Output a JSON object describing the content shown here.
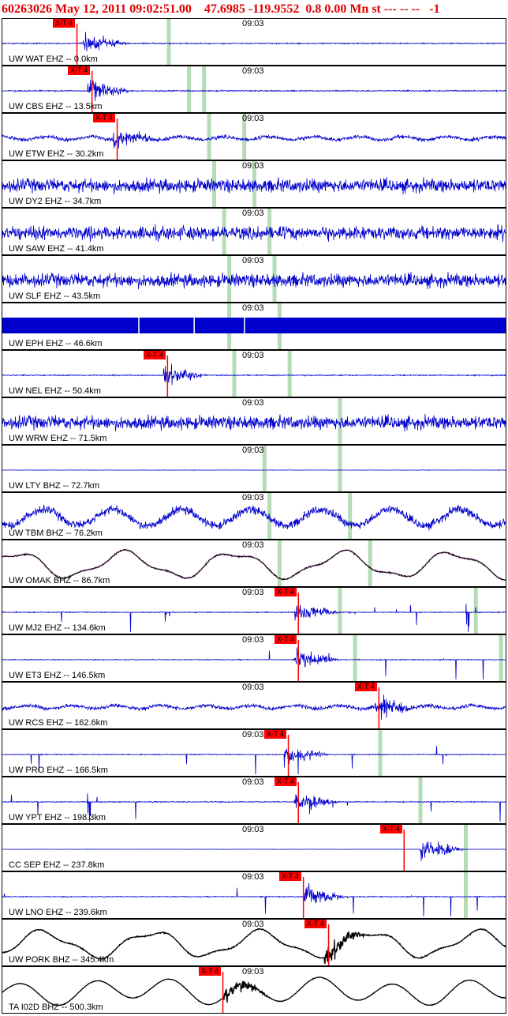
{
  "header": {
    "event_id": "60263026",
    "datetime": "May 12, 2011 09:02:51.00",
    "latitude": "47.6985",
    "longitude": "-119.9552",
    "magnitude": "0.8",
    "depth": "0.00",
    "mag_type": "Mn",
    "status": "st --- -- --",
    "flag": "-1"
  },
  "time_tick_label": "09:03",
  "pick_label": "X-T 4",
  "colors": {
    "blue_trace": "#0000cc",
    "dark_trace": "#2a0a2a",
    "black_trace": "#000000",
    "pick": "#ff0000",
    "phase_marker": "#b6dcb6",
    "header": "#e00000"
  },
  "traces": [
    {
      "label": "UW WAT EHZ -- 0.0km",
      "style": "quiet",
      "color": "blue_trace",
      "pick": true,
      "pick_x": 0.1,
      "burst_x": 0.16,
      "markers": [
        0.33
      ]
    },
    {
      "label": "UW CBS EHZ -- 13.5km",
      "style": "quiet",
      "color": "blue_trace",
      "pick": true,
      "pick_x": 0.13,
      "burst_x": 0.17,
      "markers": [
        0.37,
        0.4
      ]
    },
    {
      "label": "UW ETW EHZ -- 30.2km",
      "style": "moderate",
      "color": "blue_trace",
      "pick": true,
      "pick_x": 0.18,
      "burst_x": 0.22,
      "markers": [
        0.41,
        0.48
      ]
    },
    {
      "label": "UW DY2 EHZ -- 34.7km",
      "style": "noisy",
      "color": "blue_trace",
      "pick": false,
      "markers": [
        0.42,
        0.5
      ]
    },
    {
      "label": "UW SAW EHZ -- 41.4km",
      "style": "noisy",
      "color": "blue_trace",
      "pick": false,
      "markers": [
        0.44,
        0.53
      ]
    },
    {
      "label": "UW SLF EHZ -- 43.5km",
      "style": "noisy",
      "color": "blue_trace",
      "pick": false,
      "markers": [
        0.45,
        0.54
      ]
    },
    {
      "label": "UW EPH EHZ -- 46.6km",
      "style": "saturated",
      "color": "blue_trace",
      "pick": false,
      "markers": [
        0.45,
        0.55
      ]
    },
    {
      "label": "UW NEL EHZ -- 50.4km",
      "style": "quiet",
      "color": "blue_trace",
      "pick": true,
      "pick_x": 0.28,
      "burst_x": 0.32,
      "markers": [
        0.46,
        0.57
      ]
    },
    {
      "label": "UW WRW EHZ -- 71.5km",
      "style": "noisy",
      "color": "blue_trace",
      "pick": false,
      "markers": [
        0.67
      ]
    },
    {
      "label": "UW LTY BHZ -- 72.7km",
      "style": "flat",
      "color": "blue_trace",
      "pick": false,
      "markers": [
        0.52,
        0.67
      ]
    },
    {
      "label": "UW TBM BHZ -- 76.2km",
      "style": "wavy",
      "color": "blue_trace",
      "pick": false,
      "markers": [
        0.53,
        0.69
      ]
    },
    {
      "label": "UW OMAK BHZ -- 86.7km",
      "style": "longwave",
      "color": "dark_trace",
      "pick": false,
      "markers": [
        0.55,
        0.73
      ]
    },
    {
      "label": "UW MJ2 EHZ -- 134.6km",
      "style": "spiky",
      "color": "blue_trace",
      "pick": true,
      "pick_x": 0.54,
      "burst_x": 0.58,
      "markers": [
        0.67,
        0.94
      ]
    },
    {
      "label": "UW ET3 EHZ -- 146.5km",
      "style": "spiky",
      "color": "blue_trace",
      "pick": true,
      "pick_x": 0.54,
      "burst_x": 0.58,
      "markers": [
        0.7,
        0.99
      ]
    },
    {
      "label": "UW RCS EHZ -- 162.6km",
      "style": "moderate",
      "color": "blue_trace",
      "pick": true,
      "pick_x": 0.7,
      "burst_x": 0.74,
      "markers": []
    },
    {
      "label": "UW PRO EHZ -- 166.5km",
      "style": "spiky",
      "color": "blue_trace",
      "pick": true,
      "pick_x": 0.52,
      "burst_x": 0.56,
      "markers": [
        0.75
      ]
    },
    {
      "label": "UW YPT EHZ -- 198.3km",
      "style": "spiky",
      "color": "blue_trace",
      "pick": true,
      "pick_x": 0.54,
      "burst_x": 0.58,
      "markers": [
        0.83
      ]
    },
    {
      "label": "CC SEP EHZ -- 237.8km",
      "style": "flat",
      "color": "blue_trace",
      "pick": true,
      "pick_x": 0.75,
      "burst_x": 0.83,
      "markers": [
        0.92
      ]
    },
    {
      "label": "UW LNO EHZ -- 239.6km",
      "style": "spiky",
      "color": "blue_trace",
      "pick": true,
      "pick_x": 0.55,
      "burst_x": 0.6,
      "markers": [
        0.92
      ]
    },
    {
      "label": "UW PORK BHZ -- 345.4km",
      "style": "longwave",
      "color": "black_trace",
      "pick": true,
      "pick_x": 0.6,
      "burst_x": 0.64,
      "markers": []
    },
    {
      "label": "TA I02D BHZ -- 500.3km",
      "style": "longwave2",
      "color": "black_trace",
      "pick": true,
      "pick_x": 0.39,
      "burst_x": 0.44,
      "markers": []
    }
  ]
}
